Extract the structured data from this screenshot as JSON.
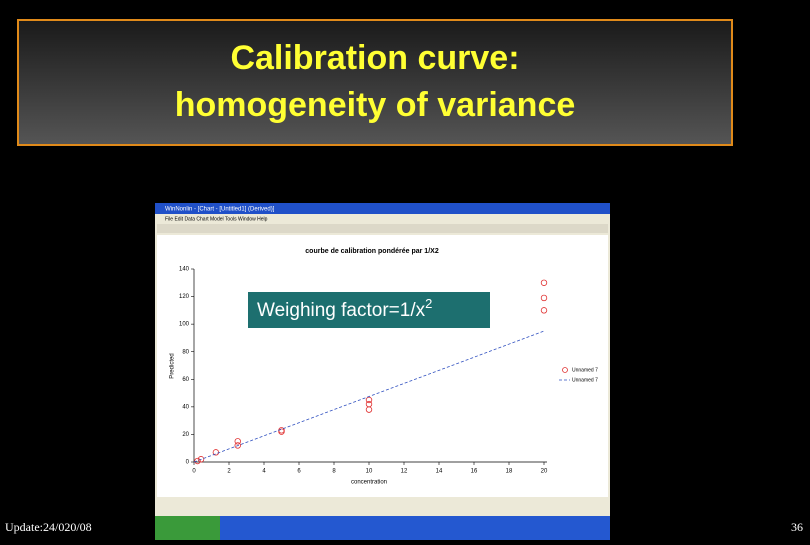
{
  "slide": {
    "title_line1": "Calibration curve:",
    "title_line2": "homogeneity of variance",
    "footer": "Update:24/020/08",
    "page_number": "36"
  },
  "window": {
    "title": "WinNonlin - [Chart - [Untitled1] (Derived)]",
    "menu": "File Edit Data Chart Model Tools Window Help"
  },
  "chart_data": [
    {
      "type": "scatter",
      "title": "courbe de calibration pondérée par 1/X2",
      "x_label": "concentration",
      "y_label": "Predicted",
      "annotation": {
        "text": "Weighing factor=1/x",
        "superscript": "2"
      },
      "xlim": [
        0,
        20
      ],
      "xticks": [
        0,
        2,
        4,
        6,
        8,
        10,
        12,
        14,
        16,
        18,
        20
      ],
      "ylim": [
        0,
        140
      ],
      "yticks": [
        0,
        20,
        40,
        60,
        80,
        100,
        120,
        140
      ],
      "series": [
        {
          "name": "Unnamed 7",
          "color": "#e03030",
          "x": [
            0.2,
            0.4,
            1.25,
            2.5,
            2.5,
            5,
            5,
            10,
            10,
            10,
            20,
            20,
            20
          ],
          "values": [
            0.7,
            2,
            7,
            12,
            15,
            22,
            23,
            45,
            42,
            38,
            130,
            119,
            110
          ]
        }
      ]
    },
    {
      "type": "line",
      "series": [
        {
          "name": "Unnamed 7",
          "color": "#3050c0",
          "x": [
            0,
            20
          ],
          "values": [
            0,
            95
          ]
        }
      ]
    }
  ]
}
